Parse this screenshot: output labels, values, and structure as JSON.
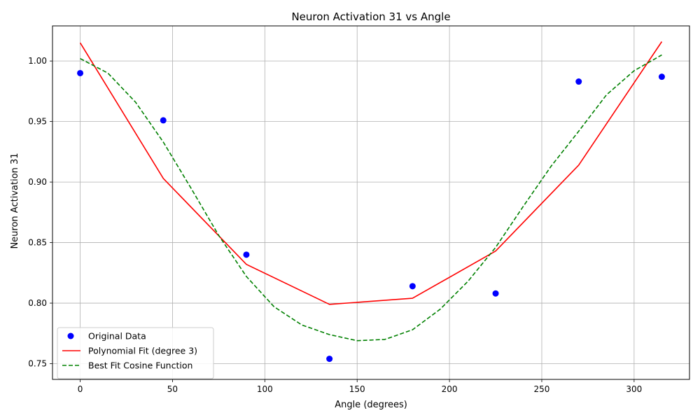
{
  "chart_data": {
    "type": "line",
    "title": "Neuron Activation 31 vs Angle",
    "xlabel": "Angle (degrees)",
    "ylabel": "Neuron Activation 31",
    "xlim": [
      -15,
      330
    ],
    "ylim": [
      0.737,
      1.029
    ],
    "xticks": [
      0,
      50,
      100,
      150,
      200,
      250,
      300
    ],
    "yticks": [
      0.75,
      0.8,
      0.85,
      0.9,
      0.95,
      1.0
    ],
    "xtick_labels": [
      "0",
      "50",
      "100",
      "150",
      "200",
      "250",
      "300"
    ],
    "ytick_labels": [
      "0.75",
      "0.80",
      "0.85",
      "0.90",
      "0.95",
      "1.00"
    ],
    "grid": true,
    "legend_position": "lower-left",
    "series": [
      {
        "name": "Original Data",
        "kind": "scatter",
        "color": "#0000ff",
        "x": [
          0,
          45,
          90,
          135,
          180,
          225,
          270,
          315
        ],
        "y": [
          0.99,
          0.951,
          0.84,
          0.754,
          0.814,
          0.808,
          0.983,
          0.987
        ]
      },
      {
        "name": "Polynomial Fit (degree 3)",
        "kind": "line",
        "color": "#ff0000",
        "x": [
          0,
          45,
          90,
          135,
          180,
          225,
          270,
          315
        ],
        "y": [
          1.015,
          0.903,
          0.832,
          0.799,
          0.804,
          0.843,
          0.914,
          1.016
        ]
      },
      {
        "name": "Best Fit Cosine Function",
        "kind": "dashed",
        "color": "#008000",
        "x": [
          0,
          15,
          30,
          45,
          60,
          75,
          90,
          105,
          120,
          135,
          150,
          165,
          180,
          195,
          210,
          225,
          240,
          255,
          270,
          285,
          300,
          315
        ],
        "y": [
          1.002,
          0.99,
          0.966,
          0.933,
          0.895,
          0.856,
          0.822,
          0.797,
          0.782,
          0.774,
          0.769,
          0.77,
          0.778,
          0.795,
          0.818,
          0.846,
          0.88,
          0.913,
          0.942,
          0.972,
          0.992,
          1.005
        ]
      }
    ]
  }
}
